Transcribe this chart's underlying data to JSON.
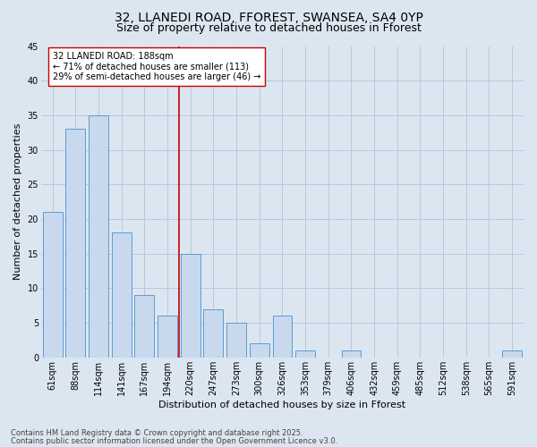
{
  "title1": "32, LLANEDI ROAD, FFOREST, SWANSEA, SA4 0YP",
  "title2": "Size of property relative to detached houses in Fforest",
  "xlabel": "Distribution of detached houses by size in Fforest",
  "ylabel": "Number of detached properties",
  "categories": [
    "61sqm",
    "88sqm",
    "114sqm",
    "141sqm",
    "167sqm",
    "194sqm",
    "220sqm",
    "247sqm",
    "273sqm",
    "300sqm",
    "326sqm",
    "353sqm",
    "379sqm",
    "406sqm",
    "432sqm",
    "459sqm",
    "485sqm",
    "512sqm",
    "538sqm",
    "565sqm",
    "591sqm"
  ],
  "values": [
    21,
    33,
    35,
    18,
    9,
    6,
    15,
    7,
    5,
    2,
    6,
    1,
    0,
    1,
    0,
    0,
    0,
    0,
    0,
    0,
    1
  ],
  "bar_color": "#c9d9ed",
  "bar_edge_color": "#5b9bd5",
  "grid_color": "#b8c8dc",
  "background_color": "#dce6f1",
  "vline_x": 5.5,
  "vline_color": "#cc0000",
  "annotation_text": "32 LLANEDI ROAD: 188sqm\n← 71% of detached houses are smaller (113)\n29% of semi-detached houses are larger (46) →",
  "annotation_box_facecolor": "#ffffff",
  "annotation_box_edgecolor": "#cc0000",
  "footer1": "Contains HM Land Registry data © Crown copyright and database right 2025.",
  "footer2": "Contains public sector information licensed under the Open Government Licence v3.0.",
  "ylim": [
    0,
    45
  ],
  "yticks": [
    0,
    5,
    10,
    15,
    20,
    25,
    30,
    35,
    40,
    45
  ],
  "title_fontsize": 10,
  "subtitle_fontsize": 9,
  "tick_fontsize": 7,
  "ylabel_fontsize": 8,
  "xlabel_fontsize": 8,
  "footer_fontsize": 6,
  "annotation_fontsize": 7
}
